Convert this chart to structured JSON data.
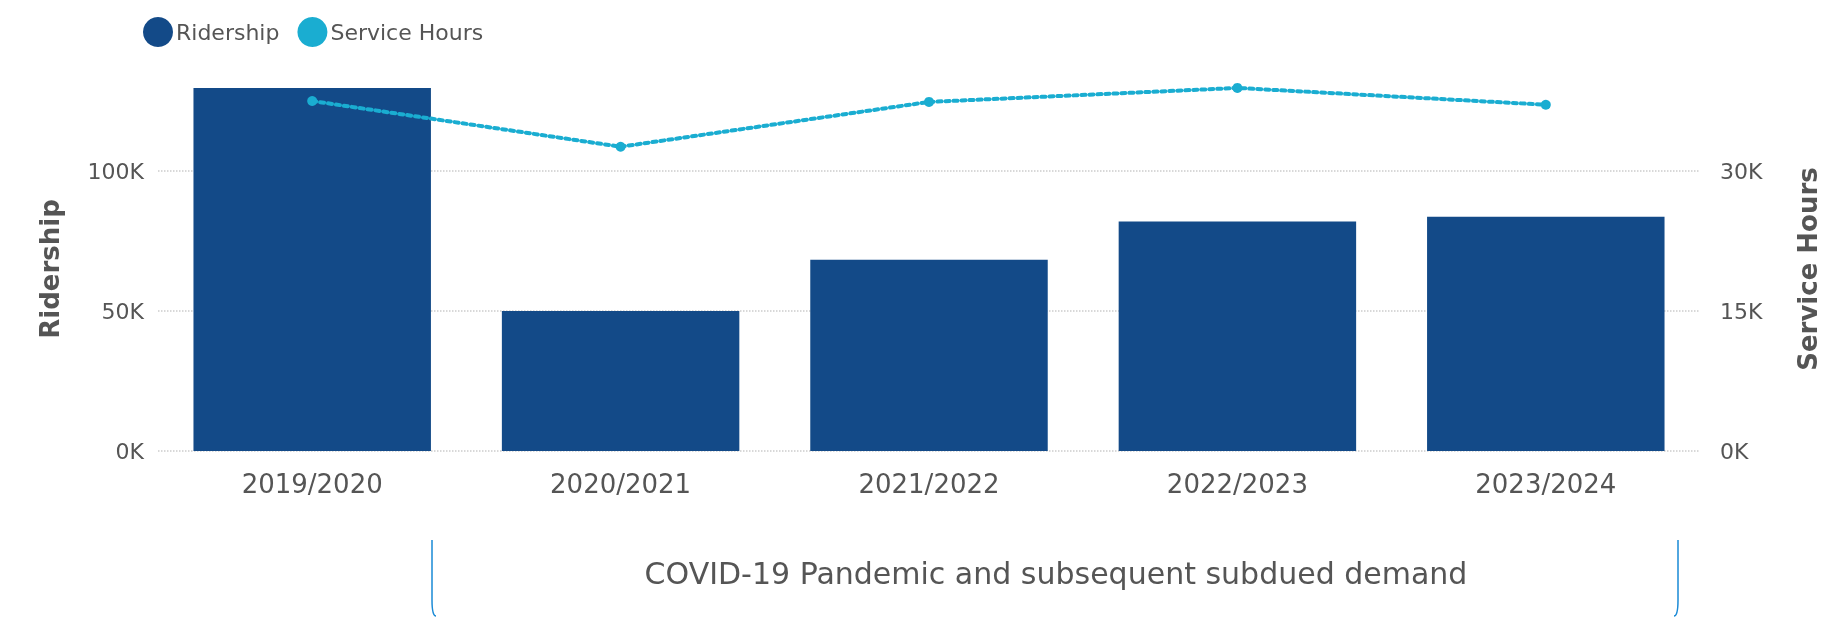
{
  "chart_data": {
    "type": "bar",
    "categories": [
      "2019/2020",
      "2020/2021",
      "2021/2022",
      "2022/2023",
      "2023/2024"
    ],
    "series": [
      {
        "name": "Ridership",
        "color": "#134a88",
        "values": [
          129600,
          50000,
          68300,
          82000,
          83700
        ]
      },
      {
        "name": "Service Hours",
        "type": "line",
        "axis": "y2",
        "color": "#1aadd1",
        "marker": "circle",
        "line_style": "dotted",
        "values": [
          37500,
          32600,
          37400,
          38900,
          37100
        ]
      }
    ],
    "ylabel": "Ridership",
    "y2label": "Service Hours",
    "ylim": [
      0,
      130000
    ],
    "yticks": [
      {
        "value": 0,
        "label": "0K"
      },
      {
        "value": 50000,
        "label": "50K"
      },
      {
        "value": 100000,
        "label": "100K"
      }
    ],
    "y2lim": [
      0,
      39000
    ],
    "y2ticks": [
      {
        "value": 0,
        "label": "0K"
      },
      {
        "value": 15000,
        "label": "15K"
      },
      {
        "value": 30000,
        "label": "30K"
      }
    ],
    "grid": "y",
    "legend": "top left",
    "annotations": [
      "COVID-19 Pandemic and subsequent subdued demand"
    ]
  }
}
